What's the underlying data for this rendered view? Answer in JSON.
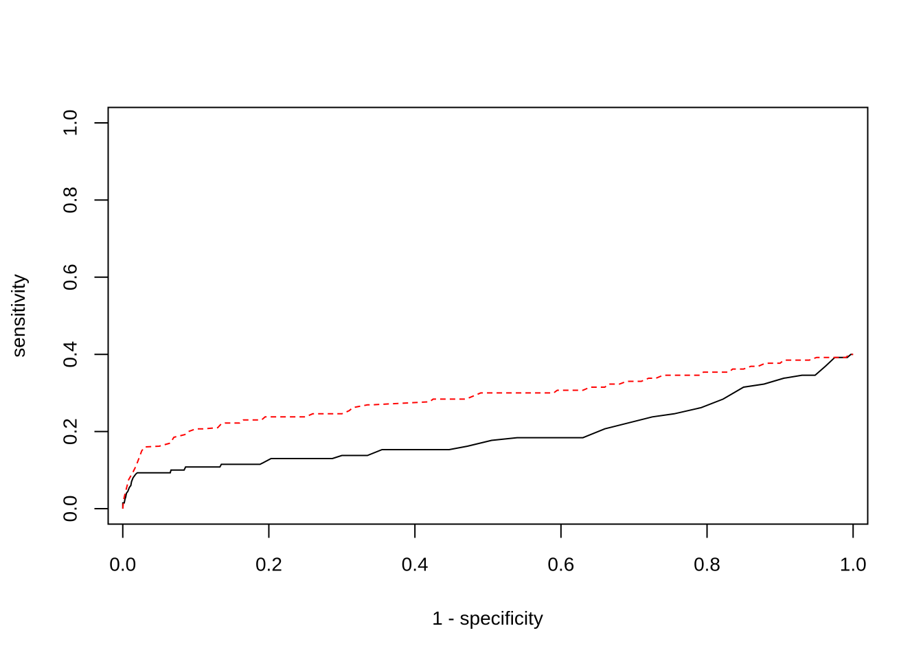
{
  "chart_data": {
    "type": "line",
    "title": "",
    "xlabel": "1 - specificity",
    "ylabel": "sensitivity",
    "xlim": [
      -0.02,
      1.02
    ],
    "ylim": [
      -0.04,
      1.04
    ],
    "x_ticks": [
      0.0,
      0.2,
      0.4,
      0.6,
      0.8,
      1.0
    ],
    "y_ticks": [
      0.0,
      0.2,
      0.4,
      0.6,
      0.8,
      1.0
    ],
    "x_tick_labels": [
      "0.0",
      "0.2",
      "0.4",
      "0.6",
      "0.8",
      "1.0"
    ],
    "y_tick_labels": [
      "0.0",
      "0.2",
      "0.4",
      "0.6",
      "0.8",
      "1.0"
    ],
    "grid": false,
    "legend": "none",
    "series": [
      {
        "color": "#000000",
        "dash": "solid",
        "x": [
          0.0,
          0.0,
          0.002,
          0.003,
          0.004,
          0.005,
          0.007,
          0.009,
          0.011,
          0.012,
          0.014,
          0.016,
          0.018,
          0.02,
          0.065,
          0.066,
          0.084,
          0.086,
          0.133,
          0.135,
          0.188,
          0.203,
          0.287,
          0.3,
          0.335,
          0.355,
          0.447,
          0.472,
          0.505,
          0.54,
          0.63,
          0.66,
          0.725,
          0.755,
          0.792,
          0.822,
          0.85,
          0.878,
          0.905,
          0.93,
          0.948,
          0.962,
          0.975,
          0.992,
          0.997,
          1.0
        ],
        "y": [
          0.0,
          0.015,
          0.015,
          0.025,
          0.03,
          0.04,
          0.045,
          0.055,
          0.06,
          0.07,
          0.08,
          0.085,
          0.09,
          0.093,
          0.093,
          0.1,
          0.1,
          0.108,
          0.108,
          0.115,
          0.115,
          0.13,
          0.13,
          0.138,
          0.138,
          0.153,
          0.153,
          0.162,
          0.177,
          0.184,
          0.184,
          0.207,
          0.238,
          0.246,
          0.262,
          0.284,
          0.315,
          0.323,
          0.338,
          0.346,
          0.346,
          0.369,
          0.392,
          0.392,
          0.4,
          0.4
        ]
      },
      {
        "color": "#ff0000",
        "dash": "dashed",
        "x": [
          0.0,
          0.001,
          0.002,
          0.004,
          0.006,
          0.008,
          0.011,
          0.014,
          0.018,
          0.022,
          0.026,
          0.03,
          0.05,
          0.065,
          0.07,
          0.085,
          0.09,
          0.1,
          0.11,
          0.13,
          0.135,
          0.14,
          0.16,
          0.165,
          0.19,
          0.195,
          0.25,
          0.26,
          0.3,
          0.31,
          0.315,
          0.335,
          0.34,
          0.42,
          0.425,
          0.47,
          0.48,
          0.49,
          0.59,
          0.595,
          0.63,
          0.64,
          0.66,
          0.665,
          0.68,
          0.69,
          0.71,
          0.72,
          0.73,
          0.74,
          0.79,
          0.795,
          0.83,
          0.835,
          0.85,
          0.86,
          0.87,
          0.88,
          0.9,
          0.905,
          0.94,
          0.95,
          0.99,
          0.995,
          1.0
        ],
        "y": [
          0.0,
          0.02,
          0.03,
          0.045,
          0.06,
          0.075,
          0.085,
          0.095,
          0.11,
          0.13,
          0.15,
          0.16,
          0.162,
          0.17,
          0.185,
          0.192,
          0.2,
          0.207,
          0.207,
          0.21,
          0.22,
          0.222,
          0.222,
          0.23,
          0.23,
          0.238,
          0.238,
          0.246,
          0.246,
          0.254,
          0.262,
          0.269,
          0.269,
          0.277,
          0.284,
          0.284,
          0.292,
          0.3,
          0.3,
          0.307,
          0.307,
          0.315,
          0.315,
          0.323,
          0.323,
          0.33,
          0.33,
          0.338,
          0.338,
          0.346,
          0.346,
          0.354,
          0.354,
          0.362,
          0.362,
          0.369,
          0.369,
          0.377,
          0.377,
          0.385,
          0.385,
          0.392,
          0.392,
          0.4,
          0.4
        ]
      }
    ]
  }
}
